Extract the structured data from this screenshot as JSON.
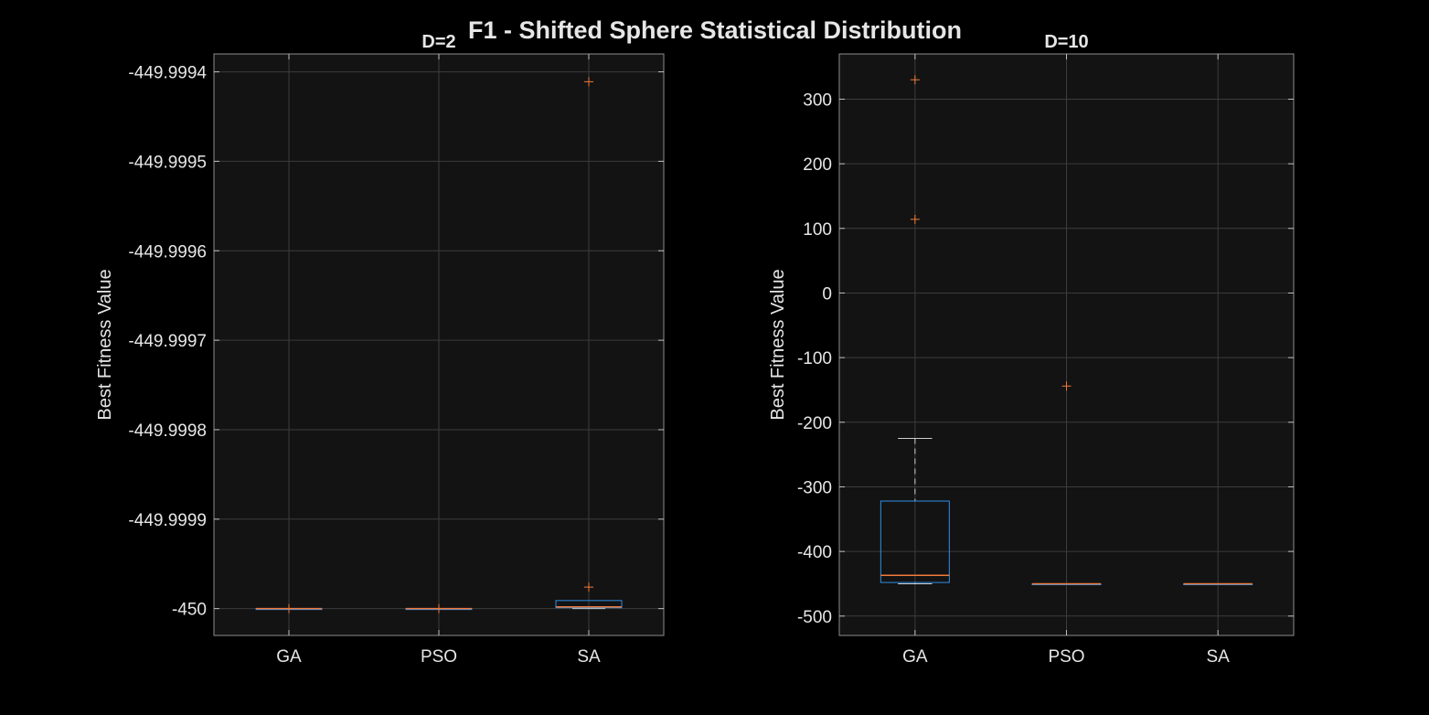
{
  "figure": {
    "title": "F1 - Shifted Sphere Statistical Distribution",
    "background": "#000000",
    "axes_background": "#131313",
    "box_color": "#2f8fe6",
    "median_color": "#f07a3a",
    "outlier_color": "#f07a3a",
    "whisker_color": "#cccccc",
    "grid": true
  },
  "chart_data": [
    {
      "type": "box",
      "title": "D=2",
      "ylabel": "Best Fitness Value",
      "categories": [
        "GA",
        "PSO",
        "SA"
      ],
      "ylim": [
        -450.00003,
        -449.99938
      ],
      "yticks": [
        -450,
        -449.9999,
        -449.9998,
        -449.9997,
        -449.9996,
        -449.9995,
        -449.9994
      ],
      "ytick_labels": [
        "-450",
        "-449.9999",
        "-449.9998",
        "-449.9997",
        "-449.9996",
        "-449.9995",
        "-449.9994"
      ],
      "boxes": [
        {
          "name": "GA",
          "whisker_low": -450,
          "q1": -450,
          "median": -450,
          "q3": -450,
          "whisker_high": -450,
          "outliers": [
            -450
          ]
        },
        {
          "name": "PSO",
          "whisker_low": -450,
          "q1": -450,
          "median": -450,
          "q3": -450,
          "whisker_high": -450,
          "outliers": [
            -450
          ]
        },
        {
          "name": "SA",
          "whisker_low": -450,
          "q1": -449.999999,
          "median": -449.999998,
          "q3": -449.999991,
          "whisker_high": -449.999991,
          "outliers": [
            -449.999976,
            -449.999411
          ]
        }
      ]
    },
    {
      "type": "box",
      "title": "D=10",
      "ylabel": "Best Fitness Value",
      "categories": [
        "GA",
        "PSO",
        "SA"
      ],
      "ylim": [
        -530,
        370
      ],
      "yticks": [
        -500,
        -400,
        -300,
        -200,
        -100,
        0,
        100,
        200,
        300
      ],
      "ytick_labels": [
        "-500",
        "-400",
        "-300",
        "-200",
        "-100",
        "0",
        "100",
        "200",
        "300"
      ],
      "boxes": [
        {
          "name": "GA",
          "whisker_low": -450,
          "q1": -448,
          "median": -437,
          "q3": -322,
          "whisker_high": -225,
          "outliers": [
            114,
            330
          ]
        },
        {
          "name": "PSO",
          "whisker_low": -450,
          "q1": -450,
          "median": -450,
          "q3": -450,
          "whisker_high": -450,
          "outliers": [
            -144
          ]
        },
        {
          "name": "SA",
          "whisker_low": -450,
          "q1": -450,
          "median": -450,
          "q3": -450,
          "whisker_high": -450,
          "outliers": []
        }
      ]
    }
  ]
}
